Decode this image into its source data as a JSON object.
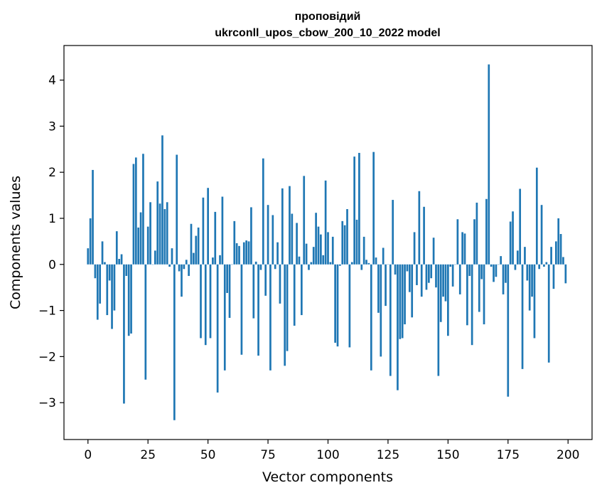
{
  "chart_data": {
    "type": "bar",
    "title": [
      "проповідий",
      "ukrconll_upos_cbow_200_10_2022 model"
    ],
    "xlabel": "Vector components",
    "ylabel": "Components values",
    "xlim": [
      -10,
      210
    ],
    "ylim": [
      -3.8,
      4.75
    ],
    "xticks": [
      0,
      25,
      50,
      75,
      100,
      125,
      150,
      175,
      200
    ],
    "yticks": [
      -3,
      -2,
      -1,
      0,
      1,
      2,
      3,
      4
    ],
    "xtick_labels": [
      "0",
      "25",
      "50",
      "75",
      "100",
      "125",
      "150",
      "175",
      "200"
    ],
    "ytick_labels": [
      "−3",
      "−2",
      "−1",
      "0",
      "1",
      "2",
      "3",
      "4"
    ],
    "grid": false,
    "bar_color": "#1f77b4",
    "values": [
      0.35,
      1.0,
      2.05,
      -0.3,
      -1.2,
      -0.85,
      0.5,
      0.05,
      -1.1,
      -0.35,
      -1.4,
      -1.0,
      0.72,
      0.12,
      0.22,
      -3.02,
      -0.25,
      -1.55,
      -1.5,
      2.18,
      2.32,
      0.8,
      1.13,
      2.4,
      -2.5,
      0.82,
      1.35,
      0.0,
      0.3,
      1.8,
      1.32,
      2.8,
      1.2,
      1.35,
      -0.05,
      0.35,
      -3.38,
      2.38,
      -0.15,
      -0.7,
      -0.1,
      0.1,
      -0.25,
      0.88,
      0.25,
      0.62,
      0.8,
      -1.6,
      1.45,
      -1.75,
      1.66,
      -1.6,
      0.15,
      1.14,
      -2.78,
      0.2,
      1.47,
      -2.3,
      -0.62,
      -1.16,
      0.0,
      0.94,
      0.46,
      0.4,
      -1.96,
      0.48,
      0.52,
      0.5,
      1.24,
      -1.17,
      0.06,
      -1.98,
      -0.12,
      2.3,
      -0.68,
      1.29,
      -2.3,
      1.07,
      -0.1,
      0.48,
      -0.85,
      1.65,
      -2.2,
      -1.88,
      1.7,
      1.1,
      -1.33,
      0.9,
      0.17,
      -1.1,
      1.92,
      0.45,
      -0.12,
      0.05,
      0.38,
      1.12,
      0.82,
      0.65,
      0.2,
      1.82,
      0.7,
      0.05,
      0.6,
      -1.7,
      -1.78,
      -0.03,
      0.94,
      0.85,
      1.2,
      -1.8,
      0.05,
      2.34,
      0.97,
      2.42,
      -0.12,
      0.6,
      0.1,
      0.03,
      -2.3,
      2.44,
      0.15,
      -1.05,
      -2.0,
      0.36,
      -0.9,
      0.0,
      -2.42,
      1.4,
      -0.22,
      -2.73,
      -1.62,
      -1.6,
      -1.3,
      -0.15,
      -0.6,
      -1.15,
      0.7,
      -0.45,
      1.59,
      -0.7,
      1.25,
      -0.55,
      -0.4,
      -0.3,
      0.58,
      -0.5,
      -2.42,
      -1.25,
      -0.7,
      -0.8,
      -1.55,
      -0.05,
      -0.48,
      0.0,
      0.98,
      -0.65,
      0.7,
      0.67,
      -1.32,
      -0.25,
      -1.75,
      0.98,
      1.34,
      -1.03,
      -0.32,
      -1.3,
      1.42,
      4.34,
      -0.05,
      -0.38,
      -0.27,
      0.0,
      0.18,
      -0.65,
      -0.4,
      -2.87,
      0.93,
      1.15,
      -0.12,
      0.3,
      1.64,
      -2.27,
      0.38,
      -0.35,
      -1.0,
      -0.7,
      -1.6,
      2.1,
      -0.1,
      1.29,
      -0.05,
      0.05,
      -2.13,
      0.38,
      -0.53,
      0.5,
      1.0,
      0.66,
      0.16,
      -0.41
    ]
  }
}
